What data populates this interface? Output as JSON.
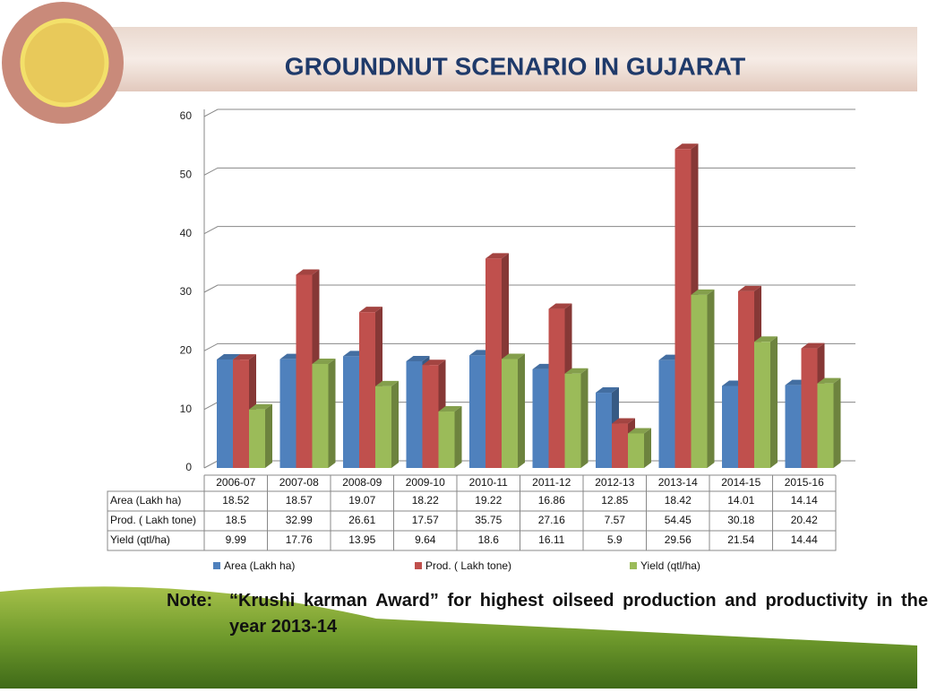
{
  "chart_data": {
    "type": "bar",
    "title": "GROUNDNUT SCENARIO IN GUJARAT",
    "categories": [
      "2006-07",
      "2007-08",
      "2008-09",
      "2009-10",
      "2010-11",
      "2011-12",
      "2012-13",
      "2013-14",
      "2014-15",
      "2015-16"
    ],
    "series": [
      {
        "name": "Area (Lakh ha)",
        "color": "#4f81bd",
        "values": [
          18.52,
          18.57,
          19.07,
          18.22,
          19.22,
          16.86,
          12.85,
          18.42,
          14.01,
          14.14
        ]
      },
      {
        "name": "Prod. ( Lakh tone)",
        "color": "#c0504d",
        "values": [
          18.5,
          32.99,
          26.61,
          17.57,
          35.75,
          27.16,
          7.57,
          54.45,
          30.18,
          20.42
        ]
      },
      {
        "name": "Yield (qtl/ha)",
        "color": "#9bbb59",
        "values": [
          9.99,
          17.76,
          13.95,
          9.64,
          18.6,
          16.11,
          5.9,
          29.56,
          21.54,
          14.44
        ]
      }
    ],
    "ylim": [
      0,
      60
    ],
    "yticks": [
      0,
      10,
      20,
      30,
      40,
      50,
      60
    ],
    "grid": true,
    "note_label": "Note:",
    "note": "“Krushi karman Award” for highest oilseed production and productivity in the year 2013-14"
  }
}
